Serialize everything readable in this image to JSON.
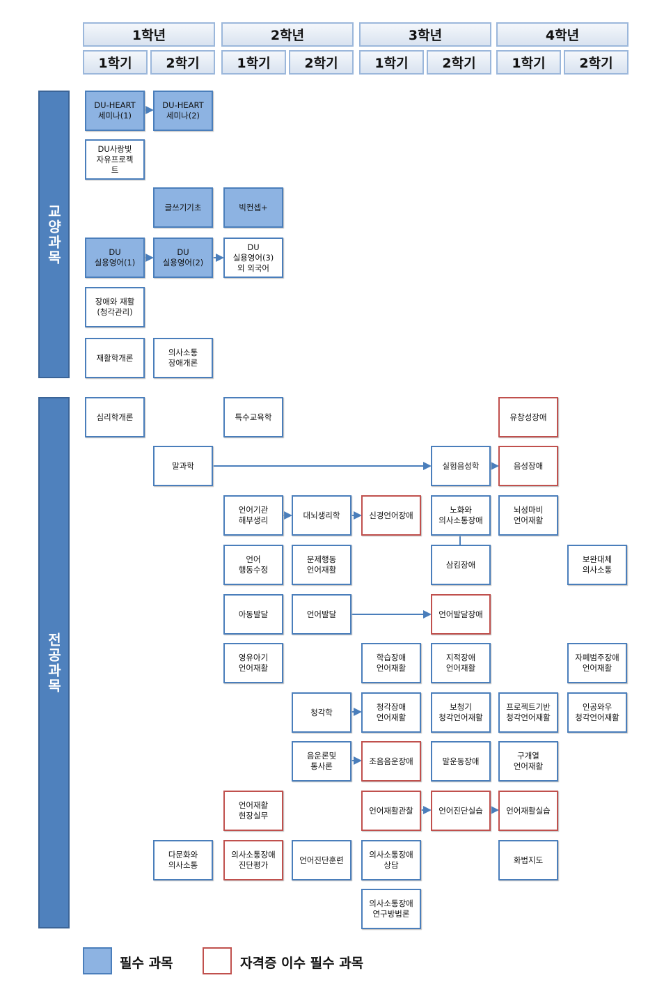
{
  "years": [
    "1학년",
    "2학년",
    "3학년",
    "4학년"
  ],
  "semesters": [
    "1학기",
    "2학기",
    "1학기",
    "2학기",
    "1학기",
    "2학기",
    "1학기",
    "2학기"
  ],
  "sections": {
    "general": "교양과목",
    "major": "전공과목"
  },
  "general": {
    "du_heart1": "DU-HEART\n세미나(1)",
    "du_heart2": "DU-HEART\n세미나(2)",
    "du_love": "DU사랑빛\n자유프로젝\n트",
    "writing": "글쓰기기초",
    "big_concept": "빅컨셉+",
    "eng1": "DU\n실용영어(1)",
    "eng2": "DU\n실용영어(2)",
    "eng3": "DU\n실용영어(3)\n외 외국어",
    "disability_rehab": "장애와 재활\n(청각관리)",
    "rehab_intro": "재활학개론",
    "comm_intro": "의사소통\n장애개론"
  },
  "major": {
    "psych": "심리학개론",
    "special_ed": "특수교육학",
    "fluency": "유창성장애",
    "speech_science": "말과학",
    "exp_phonetics": "실험음성학",
    "voice": "음성장애",
    "anatomy": "언어기관\n해부생리",
    "brain": "대뇌생리학",
    "neuro": "신경언어장애",
    "aging": "노화와\n의사소통장애",
    "cp": "뇌성마비\n언어재활",
    "behavior_mod": "언어\n행동수정",
    "problem_behavior": "문제행동\n언어재활",
    "swallow": "삼킴장애",
    "aac": "보완대체\n의사소통",
    "child_dev": "아동발달",
    "lang_dev": "언어발달",
    "lang_dev_disorder": "언어발달장애",
    "infant": "영유아기\n언어재활",
    "learning": "학습장애\n언어재활",
    "intellectual": "지적장애\n언어재활",
    "autism": "자폐범주장애\n언어재활",
    "audiology": "청각학",
    "hearing_rehab": "청각장애\n언어재활",
    "hearing_aid": "보청기\n청각언어재활",
    "project_hearing": "프로젝트기반\n청각언어재활",
    "cochlear": "인공와우\n청각언어재활",
    "phonology": "음운론및\n통사론",
    "articulation": "조음음운장애",
    "motor_speech": "말운동장애",
    "cleft": "구개열\n언어재활",
    "field_practice": "언어재활\n현장실무",
    "observation": "언어재활관찰",
    "diag_practice": "언어진단실습",
    "rehab_practice": "언어재활실습",
    "multicultural": "다문화와\n의사소통",
    "assessment": "의사소통장애\n진단평가",
    "diag_training": "언어진단훈련",
    "counseling": "의사소통장애\n상담",
    "speech_guidance": "화법지도",
    "research": "의사소통장애\n연구방법론"
  },
  "legend": {
    "required": "필수 과목",
    "certificate": "자격증 이수 필수 과목"
  },
  "colors": {
    "required_fill": "#8db3e2",
    "box_border": "#4a7ebb",
    "certificate_border": "#c0504d",
    "section_bar": "#4f81bd"
  }
}
